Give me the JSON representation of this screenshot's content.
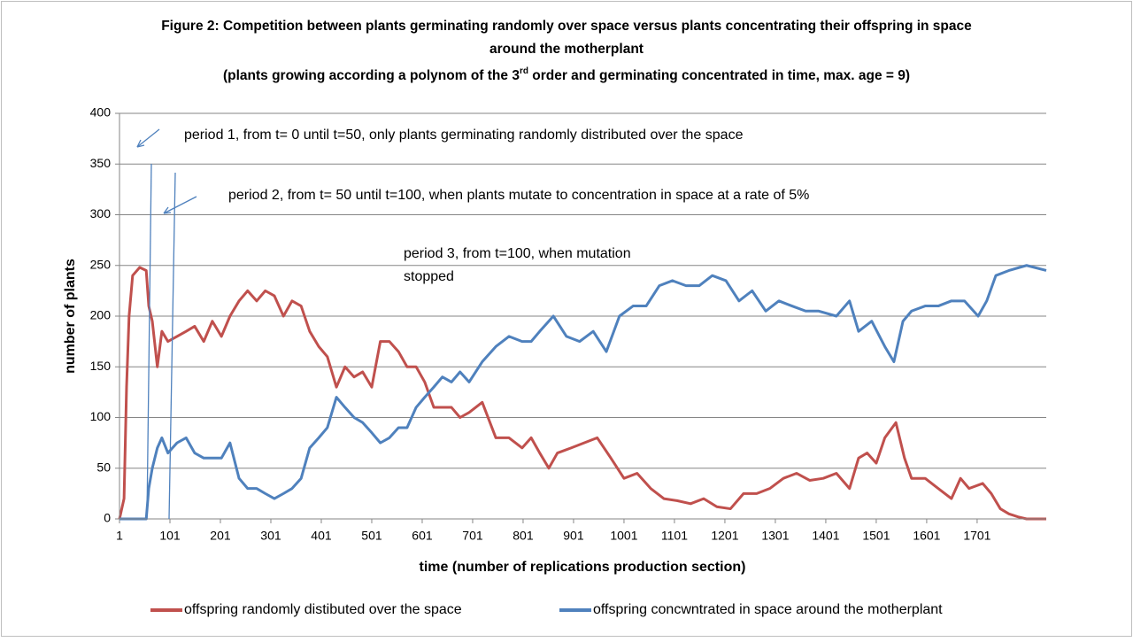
{
  "chart_data": {
    "type": "line",
    "title": [
      "Figure  2: Competition between  plants germinating randomly over space versus plants concentrating their offspring  in space",
      "around the motherplant"
    ],
    "subtitle": [
      "(plants growing according a polynom of the 3",
      "rd",
      " order and germinating concentrated  in time, max. age =  9)"
    ],
    "x_label": "time (number of replications production section)",
    "y_label": "number of plants",
    "annotations": [
      "period 1, from t= 0 until t=50, only plants germinating randomly distributed over the space",
      "period 2, from t= 50 until t=100, when plants mutate to concentration in space at a rate of 5%",
      "period 3, from t=100, when mutation",
      "stopped"
    ],
    "xlim": [
      1,
      1838
    ],
    "ylim": [
      0,
      400
    ],
    "xticks": [
      1,
      101,
      201,
      301,
      401,
      501,
      601,
      701,
      801,
      901,
      1001,
      1101,
      1201,
      1301,
      1401,
      1501,
      1601,
      1701
    ],
    "yticks": [
      0,
      50,
      100,
      150,
      200,
      250,
      300,
      350,
      400
    ],
    "grid": true,
    "legend": "bottom",
    "series": [
      {
        "name": "offspring randomly distibuted over the space",
        "color": "#c0504d",
        "x": [
          1,
          10,
          15,
          20,
          27,
          41,
          54,
          59,
          66,
          76,
          85,
          97,
          115,
          133,
          150,
          168,
          185,
          203,
          220,
          238,
          255,
          273,
          290,
          308,
          326,
          343,
          361,
          378,
          396,
          413,
          431,
          448,
          466,
          483,
          501,
          518,
          536,
          554,
          571,
          589,
          606,
          624,
          641,
          659,
          676,
          694,
          720,
          747,
          773,
          799,
          817,
          834,
          852,
          869,
          896,
          922,
          948,
          975,
          1001,
          1027,
          1054,
          1080,
          1106,
          1133,
          1159,
          1185,
          1212,
          1238,
          1264,
          1290,
          1317,
          1343,
          1369,
          1396,
          1422,
          1448,
          1466,
          1483,
          1501,
          1518,
          1540,
          1557,
          1571,
          1598,
          1624,
          1650,
          1668,
          1685,
          1712,
          1729,
          1747,
          1764,
          1782,
          1799,
          1838
        ],
        "values": [
          0,
          20,
          130,
          200,
          240,
          248,
          245,
          210,
          195,
          150,
          185,
          175,
          180,
          185,
          190,
          175,
          195,
          180,
          200,
          215,
          225,
          215,
          225,
          220,
          200,
          215,
          210,
          185,
          170,
          160,
          130,
          150,
          140,
          145,
          130,
          175,
          175,
          165,
          150,
          150,
          135,
          110,
          110,
          110,
          100,
          105,
          115,
          80,
          80,
          70,
          80,
          65,
          50,
          65,
          70,
          75,
          80,
          60,
          40,
          45,
          30,
          20,
          18,
          15,
          20,
          12,
          10,
          25,
          25,
          30,
          40,
          45,
          38,
          40,
          45,
          30,
          60,
          65,
          55,
          80,
          95,
          60,
          40,
          40,
          30,
          20,
          40,
          30,
          35,
          25,
          10,
          5,
          2,
          0,
          0
        ]
      },
      {
        "name": "offspring concwntrated in space around the motherplant",
        "color": "#4f81bd",
        "x": [
          1,
          54,
          59,
          66,
          76,
          85,
          97,
          115,
          133,
          150,
          168,
          185,
          203,
          220,
          238,
          255,
          273,
          290,
          308,
          326,
          343,
          361,
          378,
          396,
          413,
          431,
          448,
          466,
          483,
          501,
          518,
          536,
          554,
          571,
          589,
          606,
          624,
          641,
          659,
          676,
          694,
          720,
          747,
          773,
          799,
          817,
          834,
          861,
          887,
          913,
          940,
          966,
          992,
          1019,
          1045,
          1071,
          1097,
          1124,
          1150,
          1176,
          1203,
          1229,
          1255,
          1282,
          1308,
          1334,
          1361,
          1387,
          1422,
          1448,
          1466,
          1492,
          1518,
          1536,
          1554,
          1571,
          1598,
          1624,
          1650,
          1676,
          1703,
          1720,
          1738,
          1764,
          1799,
          1838
        ],
        "values": [
          0,
          0,
          30,
          50,
          70,
          80,
          65,
          75,
          80,
          65,
          60,
          60,
          60,
          75,
          40,
          30,
          30,
          25,
          20,
          25,
          30,
          40,
          70,
          80,
          90,
          120,
          110,
          100,
          95,
          85,
          75,
          80,
          90,
          90,
          110,
          120,
          130,
          140,
          135,
          145,
          135,
          155,
          170,
          180,
          175,
          175,
          185,
          200,
          180,
          175,
          185,
          165,
          200,
          210,
          210,
          230,
          235,
          230,
          230,
          240,
          235,
          215,
          225,
          205,
          215,
          210,
          205,
          205,
          200,
          215,
          185,
          195,
          170,
          155,
          195,
          205,
          210,
          210,
          215,
          215,
          200,
          215,
          240,
          245,
          250,
          245
        ]
      }
    ]
  }
}
